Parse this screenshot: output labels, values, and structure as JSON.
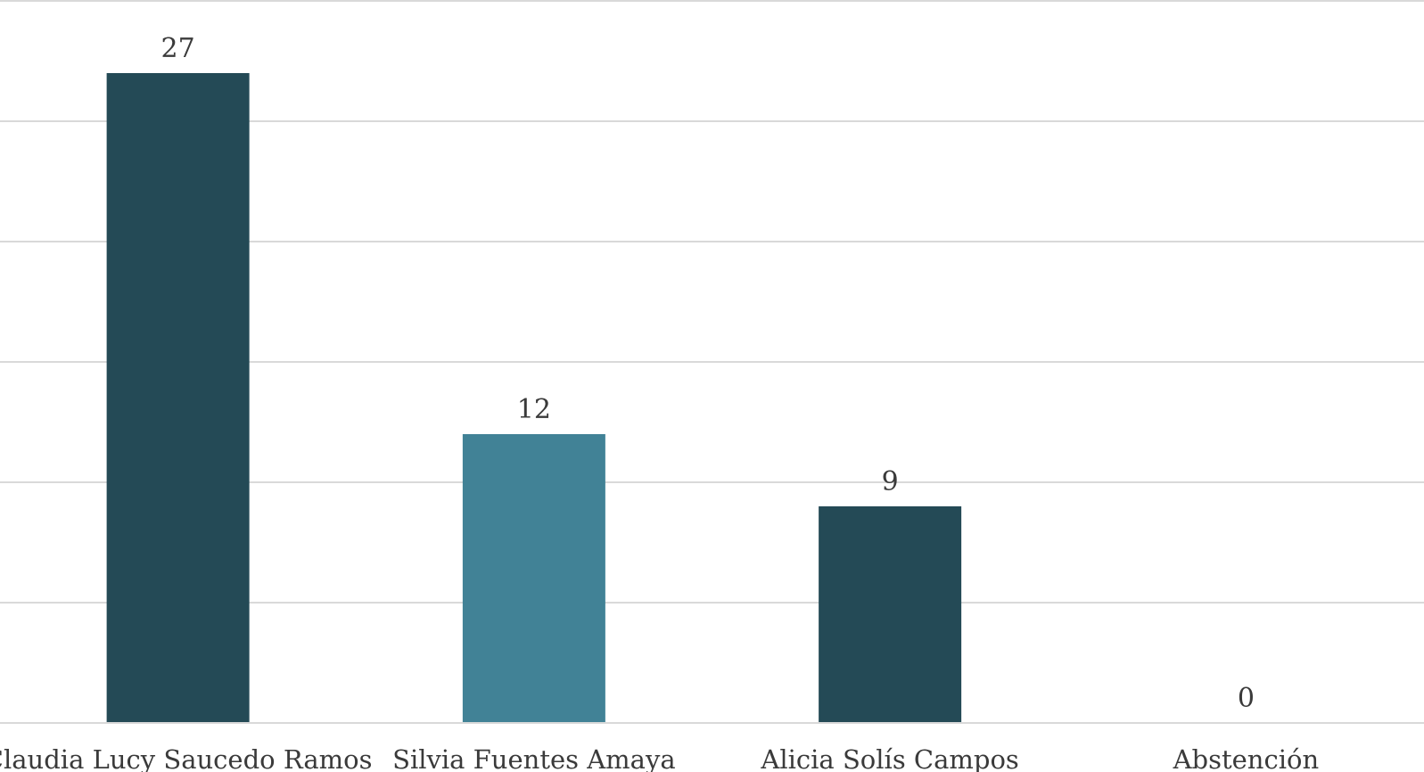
{
  "chart_data": {
    "type": "bar",
    "categories": [
      "Claudia Lucy Saucedo Ramos",
      "Silvia Fuentes Amaya",
      "Alicia Solís Campos",
      "Abstención"
    ],
    "values": [
      27,
      12,
      9,
      0
    ],
    "colors": [
      "#244a56",
      "#418296",
      "#244a56",
      "#418296"
    ],
    "ylim": [
      0,
      30
    ],
    "grid": true,
    "data_labels": true
  }
}
